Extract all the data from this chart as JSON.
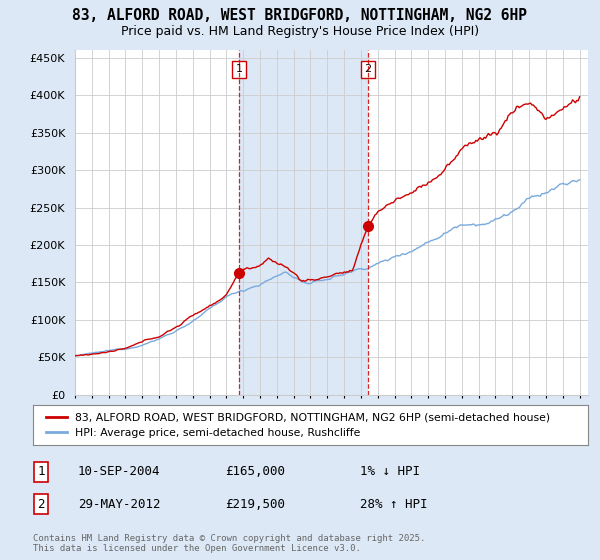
{
  "title_line1": "83, ALFORD ROAD, WEST BRIDGFORD, NOTTINGHAM, NG2 6HP",
  "title_line2": "Price paid vs. HM Land Registry's House Price Index (HPI)",
  "legend_red": "83, ALFORD ROAD, WEST BRIDGFORD, NOTTINGHAM, NG2 6HP (semi-detached house)",
  "legend_blue": "HPI: Average price, semi-detached house, Rushcliffe",
  "annotation1_label": "1",
  "annotation1_date": "10-SEP-2004",
  "annotation1_price": "£165,000",
  "annotation1_hpi": "1% ↓ HPI",
  "annotation2_label": "2",
  "annotation2_date": "29-MAY-2012",
  "annotation2_price": "£219,500",
  "annotation2_hpi": "28% ↑ HPI",
  "sale1_year": 2004.75,
  "sale1_price": 165000,
  "sale2_year": 2012.42,
  "sale2_price": 219500,
  "footer": "Contains HM Land Registry data © Crown copyright and database right 2025.\nThis data is licensed under the Open Government Licence v3.0.",
  "ylim": [
    0,
    460000
  ],
  "xlim_start": 1995,
  "xlim_end": 2025.5,
  "background_color": "#dce8f5",
  "plot_bg_color": "#ffffff",
  "red_color": "#cc0000",
  "blue_color": "#7aaadd",
  "shade_color": "#dce8f5",
  "dashed_color": "#cc0000",
  "grid_color": "#cccccc",
  "title_fontsize": 10.5,
  "subtitle_fontsize": 9.5
}
